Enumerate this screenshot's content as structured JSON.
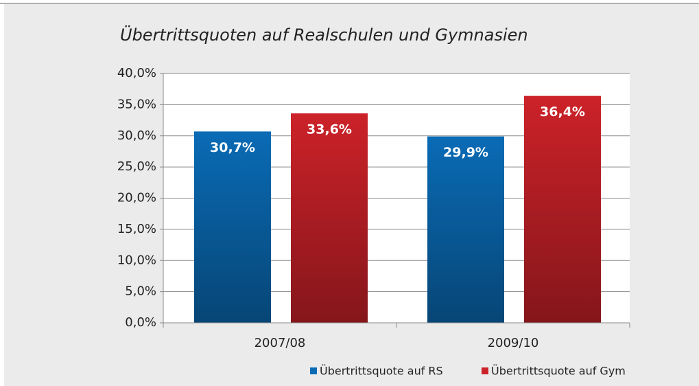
{
  "chart_data": {
    "type": "bar",
    "title": "Übertrittsquoten auf Realschulen und Gymnasien",
    "categories": [
      "2007/08",
      "2009/10"
    ],
    "series": [
      {
        "name": "Übertrittsquote auf RS",
        "color": "#0a6bb5",
        "values": [
          30.7,
          29.9
        ],
        "value_labels": [
          "30,7%",
          "29,9%"
        ]
      },
      {
        "name": "Übertrittsquote auf Gym",
        "color": "#cc2229",
        "values": [
          33.6,
          36.4
        ],
        "value_labels": [
          "33,6%",
          "36,4%"
        ]
      }
    ],
    "ylim": [
      0,
      40
    ],
    "yticks": [
      {
        "value": 0,
        "label": "0,0%"
      },
      {
        "value": 5,
        "label": "5,0%"
      },
      {
        "value": 10,
        "label": "10,0%"
      },
      {
        "value": 15,
        "label": "15,0%"
      },
      {
        "value": 20,
        "label": "20,0%"
      },
      {
        "value": 25,
        "label": "25,0%"
      },
      {
        "value": 30,
        "label": "30,0%"
      },
      {
        "value": 35,
        "label": "35,0%"
      },
      {
        "value": 40,
        "label": "40,0%"
      }
    ],
    "grid": true
  }
}
